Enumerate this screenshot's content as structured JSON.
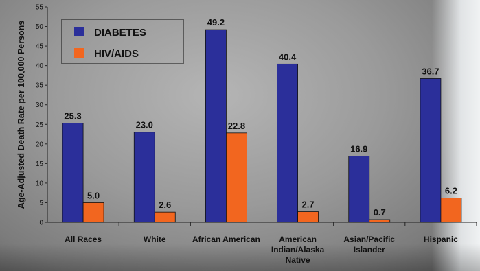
{
  "chart_data": {
    "type": "bar",
    "title": "",
    "ylabel": "Age-Adjusted Death Rate per 100,000 Persons",
    "xlabel": "",
    "ylim": [
      0,
      55
    ],
    "yticks": [
      0,
      5,
      10,
      15,
      20,
      25,
      30,
      35,
      40,
      45,
      50,
      55
    ],
    "categories": [
      [
        "All Races"
      ],
      [
        "White"
      ],
      [
        "African American"
      ],
      [
        "American",
        "Indian/Alaska",
        "Native"
      ],
      [
        "Asian/Pacific",
        "Islander"
      ],
      [
        "Hispanic"
      ]
    ],
    "series": [
      {
        "name": "DIABETES",
        "color": "#2b2f9a",
        "values": [
          25.3,
          23.0,
          49.2,
          40.4,
          16.9,
          36.7
        ]
      },
      {
        "name": "HIV/AIDS",
        "color": "#f2661f",
        "values": [
          5.0,
          2.6,
          22.8,
          2.7,
          0.7,
          6.2
        ]
      }
    ],
    "legend_position": "top-left",
    "grid": false
  }
}
